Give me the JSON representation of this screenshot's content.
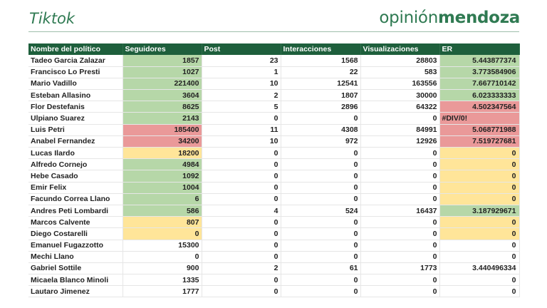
{
  "header": {
    "title": "Tiktok",
    "logo_regular": "opinión",
    "logo_bold": "mendoza"
  },
  "table": {
    "columns": [
      "Nombre del político",
      "Seguidores",
      "Post",
      "Interacciones",
      "Visualizaciones",
      "ER"
    ],
    "colors": {
      "green": "#b6d7a8",
      "red": "#ea9999",
      "yellow": "#ffe599",
      "header": "#1e5f3c"
    },
    "rows": [
      {
        "name": "Tadeo Garcia Zalazar",
        "seguidores": "1857",
        "post": "23",
        "interacciones": "1568",
        "visualizaciones": "28803",
        "er": "5.443877374",
        "seg_color": "green",
        "er_color": "green"
      },
      {
        "name": "Francisco Lo Presti",
        "seguidores": "1027",
        "post": "1",
        "interacciones": "22",
        "visualizaciones": "583",
        "er": "3.773584906",
        "seg_color": "green",
        "er_color": "green"
      },
      {
        "name": "Mario Vadillo",
        "seguidores": "221400",
        "post": "10",
        "interacciones": "12541",
        "visualizaciones": "163556",
        "er": "7.667710142",
        "seg_color": "green",
        "er_color": "green"
      },
      {
        "name": "Esteban Allasino",
        "seguidores": "3604",
        "post": "2",
        "interacciones": "1807",
        "visualizaciones": "30000",
        "er": "6.023333333",
        "seg_color": "green",
        "er_color": "green"
      },
      {
        "name": "Flor Destefanis",
        "seguidores": "8625",
        "post": "5",
        "interacciones": "2896",
        "visualizaciones": "64322",
        "er": "4.502347564",
        "seg_color": "green",
        "er_color": "red"
      },
      {
        "name": "Ulpiano Suarez",
        "seguidores": "2143",
        "post": "0",
        "interacciones": "0",
        "visualizaciones": "0",
        "er": "#DIV/0!",
        "seg_color": "green",
        "er_color": "red",
        "er_left": true
      },
      {
        "name": "Luis Petri",
        "seguidores": "185400",
        "post": "11",
        "interacciones": "4308",
        "visualizaciones": "84991",
        "er": "5.068771988",
        "seg_color": "red",
        "er_color": "red"
      },
      {
        "name": "Anabel Fernandez",
        "seguidores": "34200",
        "post": "10",
        "interacciones": "972",
        "visualizaciones": "12926",
        "er": "7.519727681",
        "seg_color": "red",
        "er_color": "red"
      },
      {
        "name": "Lucas Ilardo",
        "seguidores": "18200",
        "post": "0",
        "interacciones": "0",
        "visualizaciones": "0",
        "er": "0",
        "seg_color": "yellow",
        "er_color": "yellow"
      },
      {
        "name": "Alfredo Cornejo",
        "seguidores": "4984",
        "post": "0",
        "interacciones": "0",
        "visualizaciones": "0",
        "er": "0",
        "seg_color": "green",
        "er_color": "yellow"
      },
      {
        "name": "Hebe Casado",
        "seguidores": "1092",
        "post": "0",
        "interacciones": "0",
        "visualizaciones": "0",
        "er": "0",
        "seg_color": "green",
        "er_color": "yellow"
      },
      {
        "name": "Emir Felix",
        "seguidores": "1004",
        "post": "0",
        "interacciones": "0",
        "visualizaciones": "0",
        "er": "0",
        "seg_color": "green",
        "er_color": "yellow"
      },
      {
        "name": "Facundo Correa Llano",
        "seguidores": "6",
        "post": "0",
        "interacciones": "0",
        "visualizaciones": "0",
        "er": "0",
        "seg_color": "green",
        "er_color": "yellow"
      },
      {
        "name": "Andres Peti Lombardi",
        "seguidores": "586",
        "post": "4",
        "interacciones": "524",
        "visualizaciones": "16437",
        "er": "3.187929671",
        "seg_color": "green",
        "er_color": "green"
      },
      {
        "name": "Marcos Calvente",
        "seguidores": "807",
        "post": "0",
        "interacciones": "0",
        "visualizaciones": "0",
        "er": "0",
        "seg_color": "yellow",
        "er_color": "yellow"
      },
      {
        "name": "Diego Costarelli",
        "seguidores": "0",
        "post": "0",
        "interacciones": "0",
        "visualizaciones": "0",
        "er": "0",
        "seg_color": "yellow",
        "er_color": "yellow"
      },
      {
        "name": "Emanuel Fugazzotto",
        "seguidores": "15300",
        "post": "0",
        "interacciones": "0",
        "visualizaciones": "0",
        "er": "0",
        "seg_color": "",
        "er_color": ""
      },
      {
        "name": "Mechi Llano",
        "seguidores": "0",
        "post": "0",
        "interacciones": "0",
        "visualizaciones": "0",
        "er": "0",
        "seg_color": "",
        "er_color": ""
      },
      {
        "name": "Gabriel Sottile",
        "seguidores": "900",
        "post": "2",
        "interacciones": "61",
        "visualizaciones": "1773",
        "er": "3.440496334",
        "seg_color": "",
        "er_color": ""
      },
      {
        "name": "Micaela Blanco Minoli",
        "seguidores": "1335",
        "post": "0",
        "interacciones": "0",
        "visualizaciones": "0",
        "er": "0",
        "seg_color": "",
        "er_color": ""
      },
      {
        "name": "Lautaro Jimenez",
        "seguidores": "1777",
        "post": "0",
        "interacciones": "0",
        "visualizaciones": "0",
        "er": "0",
        "seg_color": "",
        "er_color": ""
      }
    ]
  }
}
